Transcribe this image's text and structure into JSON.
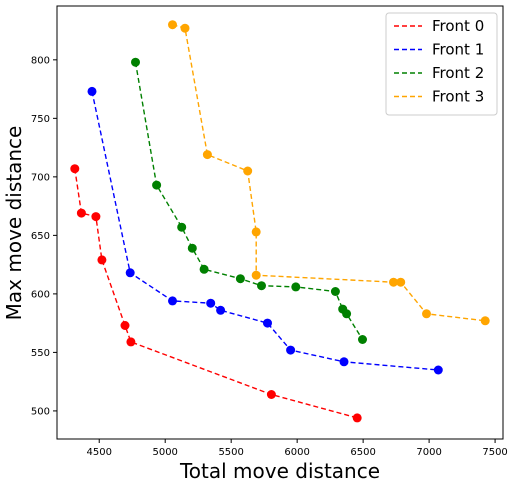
{
  "chart_data": {
    "type": "line",
    "xlabel": "Total move distance",
    "ylabel": "Max move distance",
    "xlim": [
      4180,
      7560
    ],
    "ylim": [
      476,
      846
    ],
    "xticks": [
      4500,
      5000,
      5500,
      6000,
      6500,
      7000,
      7500
    ],
    "yticks": [
      500,
      550,
      600,
      650,
      700,
      750,
      800
    ],
    "grid": false,
    "legend_position": "top-right",
    "series": [
      {
        "name": "Front 0",
        "color": "#ff0000",
        "points": [
          [
            4315,
            707
          ],
          [
            4365,
            669
          ],
          [
            4475,
            666
          ],
          [
            4520,
            629
          ],
          [
            4695,
            573
          ],
          [
            4740,
            559
          ],
          [
            5805,
            514
          ],
          [
            6455,
            494
          ]
        ]
      },
      {
        "name": "Front 1",
        "color": "#0000ff",
        "points": [
          [
            4445,
            773
          ],
          [
            4735,
            618
          ],
          [
            5055,
            594
          ],
          [
            5345,
            592
          ],
          [
            5420,
            586
          ],
          [
            5775,
            575
          ],
          [
            5950,
            552
          ],
          [
            6355,
            542
          ],
          [
            7070,
            535
          ]
        ]
      },
      {
        "name": "Front 2",
        "color": "#008000",
        "points": [
          [
            4775,
            798
          ],
          [
            4935,
            693
          ],
          [
            5125,
            657
          ],
          [
            5205,
            639
          ],
          [
            5295,
            621
          ],
          [
            5570,
            613
          ],
          [
            5730,
            607
          ],
          [
            5990,
            606
          ],
          [
            6290,
            602
          ],
          [
            6345,
            587
          ],
          [
            6375,
            583
          ],
          [
            6495,
            561
          ]
        ]
      },
      {
        "name": "Front 3",
        "color": "#ffa500",
        "points": [
          [
            5055,
            830
          ],
          [
            5150,
            827
          ],
          [
            5320,
            719
          ],
          [
            5625,
            705
          ],
          [
            5690,
            653
          ],
          [
            5690,
            616
          ],
          [
            6730,
            610
          ],
          [
            6785,
            610
          ],
          [
            6980,
            583
          ],
          [
            7425,
            577
          ]
        ]
      }
    ]
  }
}
